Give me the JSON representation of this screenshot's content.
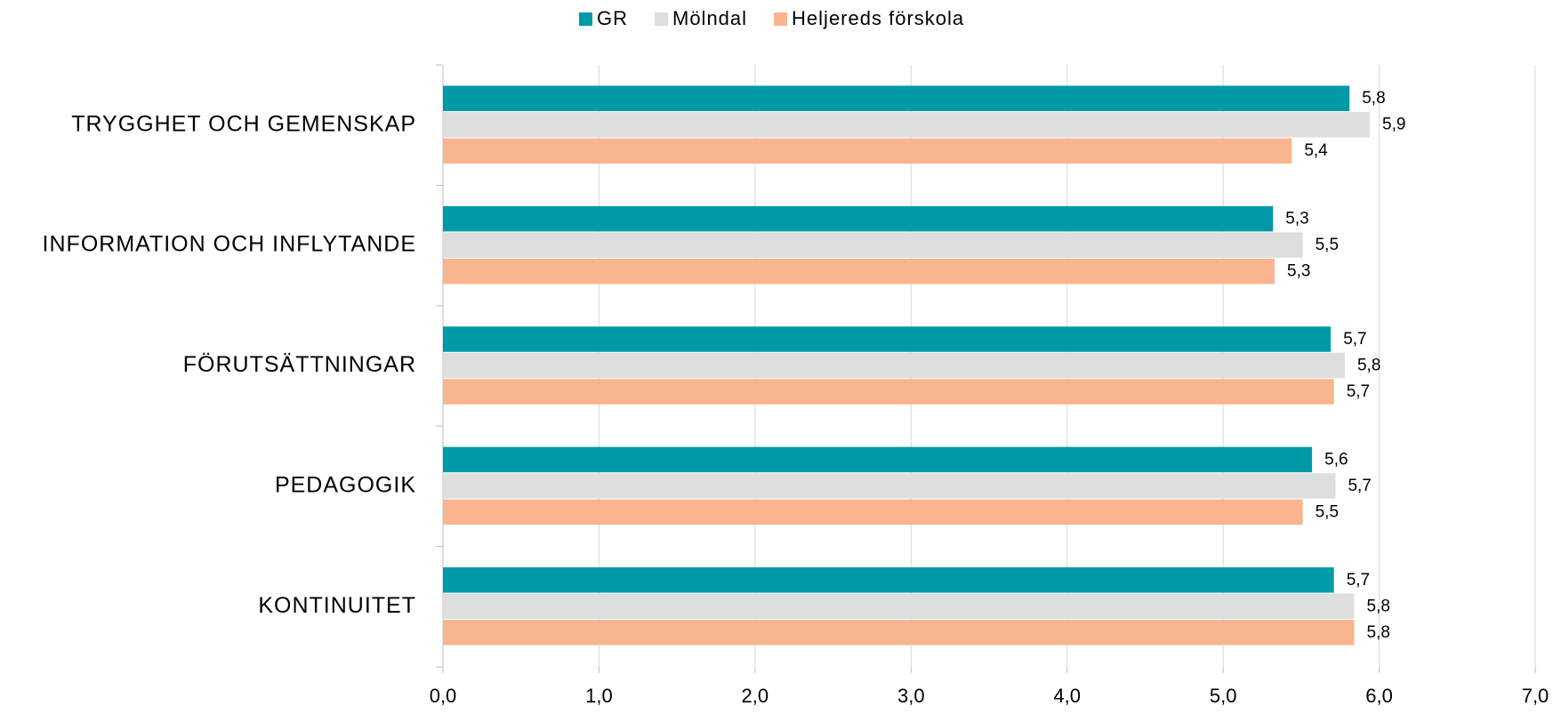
{
  "chart_data": {
    "type": "hbar",
    "categories": [
      "TRYGGHET OCH GEMENSKAP",
      "INFORMATION OCH INFLYTANDE",
      "FÖRUTSÄTTNINGAR",
      "PEDAGOGIK",
      "KONTINUITET"
    ],
    "series": [
      {
        "name": "GR",
        "color": "#0099a8",
        "values": [
          5.81,
          5.32,
          5.69,
          5.57,
          5.71
        ],
        "value_labels": [
          "5,8",
          "5,3",
          "5,7",
          "5,6",
          "5,7"
        ]
      },
      {
        "name": "Mölndal",
        "color": "#dedede",
        "values": [
          5.94,
          5.51,
          5.78,
          5.72,
          5.84
        ],
        "value_labels": [
          "5,9",
          "5,5",
          "5,8",
          "5,7",
          "5,8"
        ]
      },
      {
        "name": "Heljereds förskola",
        "color": "#f9b590",
        "values": [
          5.44,
          5.33,
          5.71,
          5.51,
          5.84
        ],
        "value_labels": [
          "5,4",
          "5,3",
          "5,7",
          "5,5",
          "5,8"
        ]
      }
    ],
    "xlim": [
      0,
      7
    ],
    "xticks": [
      {
        "value": 0,
        "label": "0,0"
      },
      {
        "value": 1,
        "label": "1,0"
      },
      {
        "value": 2,
        "label": "2,0"
      },
      {
        "value": 3,
        "label": "3,0"
      },
      {
        "value": 4,
        "label": "4,0"
      },
      {
        "value": 5,
        "label": "5,0"
      },
      {
        "value": 6,
        "label": "6,0"
      },
      {
        "value": 7,
        "label": "7,0"
      }
    ],
    "grid": true,
    "legend": "top"
  }
}
